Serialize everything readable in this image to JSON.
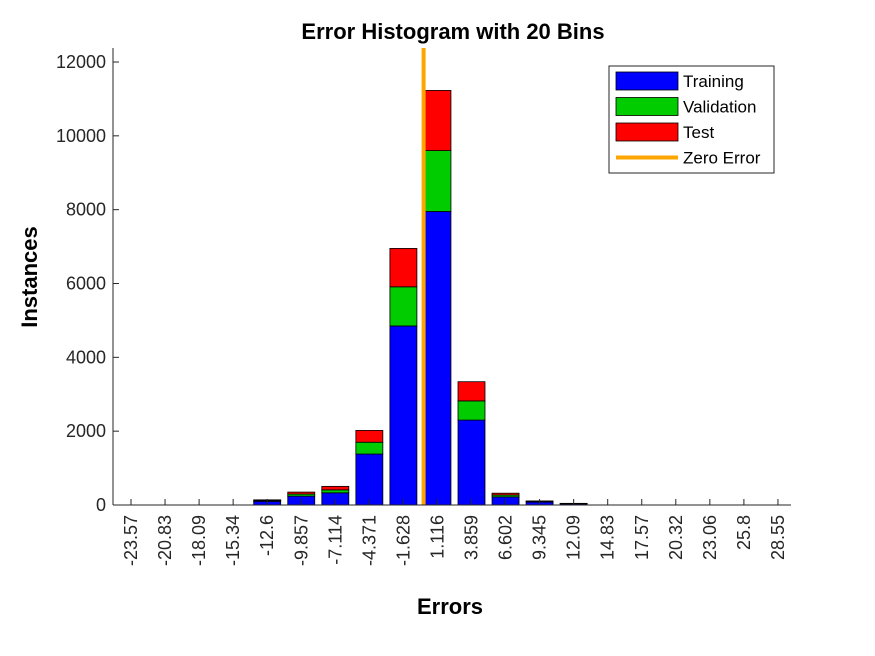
{
  "chart_data": {
    "type": "bar",
    "title": "Error Histogram with 20 Bins",
    "xlabel": "Errors",
    "ylabel": "Instances",
    "ylim": [
      0,
      12000
    ],
    "yticks": [
      0,
      2000,
      4000,
      6000,
      8000,
      10000,
      12000
    ],
    "categories": [
      "-23.57",
      "-20.83",
      "-18.09",
      "-15.34",
      "-12.6",
      "-9.857",
      "-7.114",
      "-4.371",
      "-1.628",
      "1.116",
      "3.859",
      "6.602",
      "9.345",
      "12.09",
      "14.83",
      "17.57",
      "20.32",
      "23.06",
      "25.8",
      "28.55"
    ],
    "stacked": true,
    "series": [
      {
        "name": "Training",
        "color": "#0000ff",
        "values": [
          0,
          0,
          0,
          0,
          100,
          240,
          330,
          1380,
          4850,
          7950,
          2300,
          220,
          80,
          30,
          0,
          0,
          0,
          0,
          0,
          0
        ]
      },
      {
        "name": "Validation",
        "color": "#00cc00",
        "values": [
          0,
          0,
          0,
          0,
          20,
          55,
          80,
          320,
          1060,
          1650,
          520,
          50,
          15,
          8,
          0,
          0,
          0,
          0,
          0,
          0
        ]
      },
      {
        "name": "Test",
        "color": "#ff0000",
        "values": [
          0,
          0,
          0,
          0,
          20,
          55,
          95,
          320,
          1040,
          1630,
          520,
          50,
          15,
          7,
          0,
          0,
          0,
          0,
          0,
          0
        ]
      }
    ],
    "reference_line": {
      "name": "Zero Error",
      "color": "#ffa500",
      "x": 0
    },
    "legend_position": "top-right",
    "grid": false
  }
}
